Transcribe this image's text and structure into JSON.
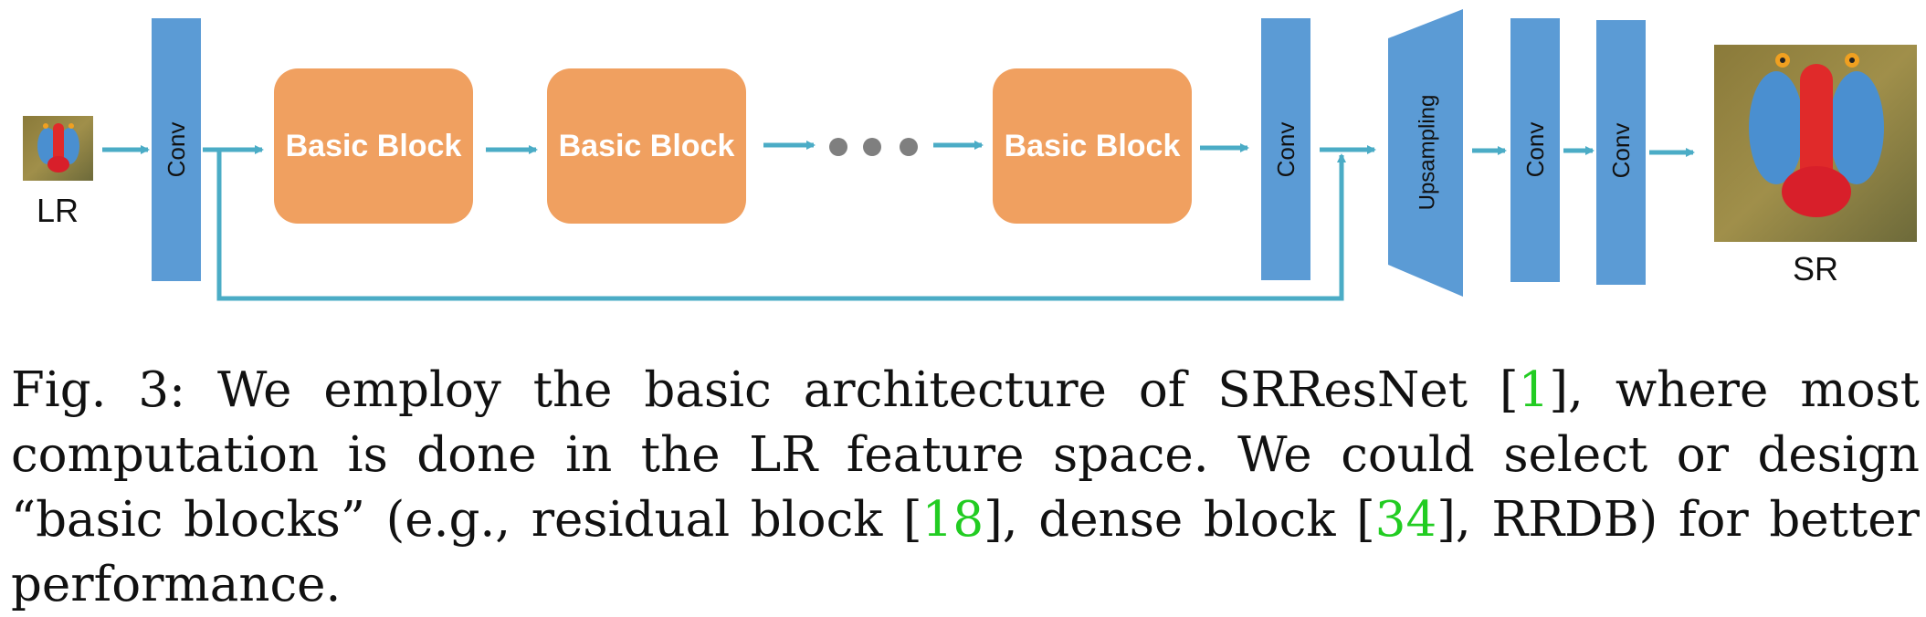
{
  "diagram": {
    "input_label": "LR",
    "output_label": "SR",
    "conv_label": "Conv",
    "block_label": "Basic Block",
    "upsampling_label": "Upsampling",
    "colors": {
      "conv": "#5b9bd5",
      "block": "#f0a060",
      "arrow": "#4bacc6",
      "dots": "#7f7f7f"
    }
  },
  "caption": {
    "prefix": "Fig. 3:",
    "part1": "We employ the basic architecture of SRResNet [",
    "ref1": "1",
    "part2": "], where most computation is done in the LR feature space. We could select or design “basic blocks” (e.g., residual block [",
    "ref2": "18",
    "part3": "], dense block [",
    "ref3": "34",
    "part4": "], RRDB) for better performance."
  }
}
